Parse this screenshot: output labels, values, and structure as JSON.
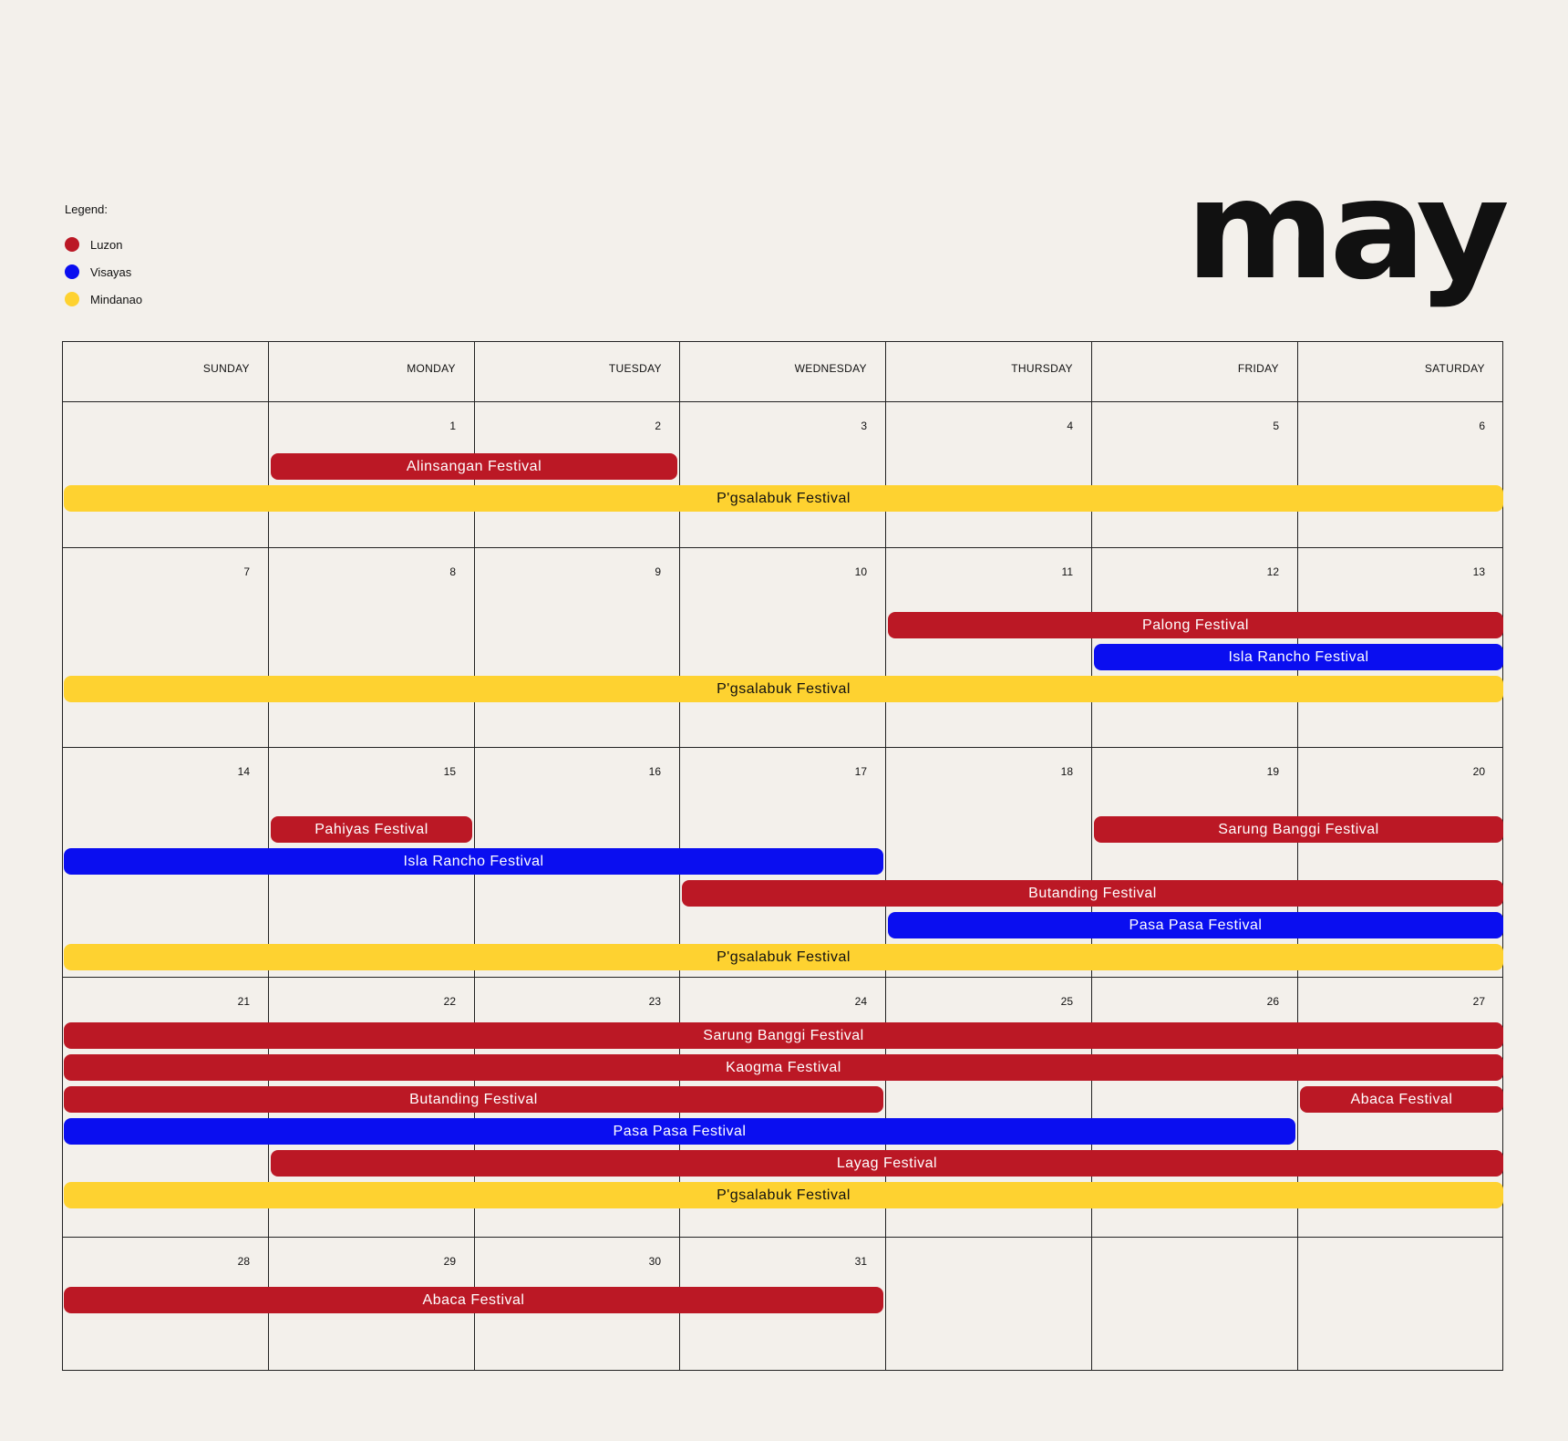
{
  "legend": {
    "title": "Legend:",
    "items": [
      {
        "label": "Luzon",
        "color": "#bb1825"
      },
      {
        "label": "Visayas",
        "color": "#0a0ef0"
      },
      {
        "label": "Mindanao",
        "color": "#fed230"
      }
    ]
  },
  "month": "may",
  "colors": {
    "luzon": "#bb1825",
    "visayas": "#0a0ef0",
    "mindanao": "#fed230",
    "grid": "#222222",
    "background": "#f3f0eb"
  },
  "calendar": {
    "days": [
      "SUNDAY",
      "MONDAY",
      "TUESDAY",
      "WEDNESDAY",
      "THURSDAY",
      "FRIDAY",
      "SATURDAY"
    ],
    "weeks": [
      [
        "",
        "1",
        "2",
        "3",
        "4",
        "5",
        "6"
      ],
      [
        "7",
        "8",
        "9",
        "10",
        "11",
        "12",
        "13"
      ],
      [
        "14",
        "15",
        "16",
        "17",
        "18",
        "19",
        "20"
      ],
      [
        "21",
        "22",
        "23",
        "24",
        "25",
        "26",
        "27"
      ],
      [
        "28",
        "29",
        "30",
        "31",
        "",
        "",
        ""
      ]
    ],
    "events": [
      {
        "label": "Alinsangan Festival",
        "region": "luzon",
        "week": 0,
        "start": 1,
        "end": 2,
        "lane": 0
      },
      {
        "label": "P'gsalabuk Festival",
        "region": "mindanao",
        "week": 0,
        "start": 0,
        "end": 6,
        "lane": 1
      },
      {
        "label": "Palong Festival",
        "region": "luzon",
        "week": 1,
        "start": 4,
        "end": 6,
        "lane": 0
      },
      {
        "label": "Isla Rancho Festival",
        "region": "visayas",
        "week": 1,
        "start": 5,
        "end": 6,
        "lane": 1
      },
      {
        "label": "P'gsalabuk Festival",
        "region": "mindanao",
        "week": 1,
        "start": 0,
        "end": 6,
        "lane": 2
      },
      {
        "label": "Pahiyas Festival",
        "region": "luzon",
        "week": 2,
        "start": 1,
        "end": 1,
        "lane": 0
      },
      {
        "label": "Sarung Banggi Festival",
        "region": "luzon",
        "week": 2,
        "start": 5,
        "end": 6,
        "lane": 0
      },
      {
        "label": "Isla Rancho Festival",
        "region": "visayas",
        "week": 2,
        "start": 0,
        "end": 3,
        "lane": 1
      },
      {
        "label": "Butanding Festival",
        "region": "luzon",
        "week": 2,
        "start": 3,
        "end": 6,
        "lane": 2
      },
      {
        "label": "Pasa Pasa Festival",
        "region": "visayas",
        "week": 2,
        "start": 4,
        "end": 6,
        "lane": 3
      },
      {
        "label": "P'gsalabuk Festival",
        "region": "mindanao",
        "week": 2,
        "start": 0,
        "end": 6,
        "lane": 4
      },
      {
        "label": "Sarung Banggi Festival",
        "region": "luzon",
        "week": 3,
        "start": 0,
        "end": 6,
        "lane": 0
      },
      {
        "label": "Kaogma Festival",
        "region": "luzon",
        "week": 3,
        "start": 0,
        "end": 6,
        "lane": 1
      },
      {
        "label": "Butanding Festival",
        "region": "luzon",
        "week": 3,
        "start": 0,
        "end": 3,
        "lane": 2
      },
      {
        "label": "Abaca Festival",
        "region": "luzon",
        "week": 3,
        "start": 6,
        "end": 6,
        "lane": 2
      },
      {
        "label": "Pasa Pasa Festival",
        "region": "visayas",
        "week": 3,
        "start": 0,
        "end": 5,
        "lane": 3
      },
      {
        "label": "Layag Festival",
        "region": "luzon",
        "week": 3,
        "start": 1,
        "end": 6,
        "lane": 4
      },
      {
        "label": "P'gsalabuk Festival",
        "region": "mindanao",
        "week": 3,
        "start": 0,
        "end": 6,
        "lane": 5
      },
      {
        "label": "Abaca Festival",
        "region": "luzon",
        "week": 4,
        "start": 0,
        "end": 3,
        "lane": 0
      }
    ]
  }
}
